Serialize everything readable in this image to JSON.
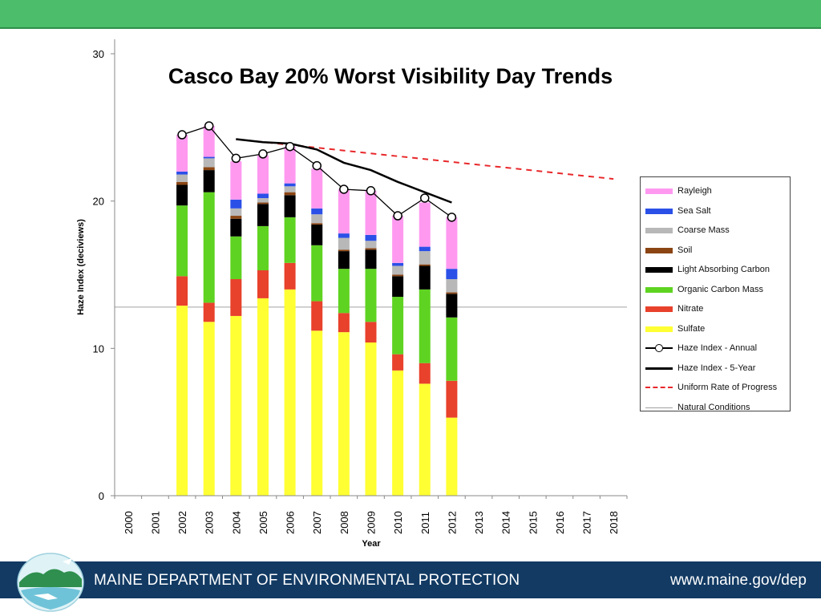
{
  "chart_data": {
    "type": "bar",
    "title": "Casco Bay 20% Worst Visibility Day Trends",
    "xlabel": "Year",
    "ylabel": "Haze Index (deciviews)",
    "ylim": [
      0,
      30
    ],
    "yticks": [
      0,
      10,
      20,
      30
    ],
    "grid": false,
    "legend_position": "right",
    "x": [
      "2000",
      "2001",
      "2002",
      "2003",
      "2004",
      "2005",
      "2006",
      "2007",
      "2008",
      "2009",
      "2010",
      "2011",
      "2012",
      "2013",
      "2014",
      "2015",
      "2016",
      "2017",
      "2018"
    ],
    "stack_order": [
      "Sulfate",
      "Nitrate",
      "Organic Carbon Mass",
      "Light Absorbing Carbon",
      "Soil",
      "Coarse Mass",
      "Sea Salt",
      "Rayleigh"
    ],
    "series": [
      {
        "name": "Sulfate",
        "color": "#ffff33",
        "values": [
          null,
          null,
          12.9,
          11.8,
          12.2,
          13.4,
          14.0,
          11.2,
          11.1,
          10.4,
          8.5,
          7.6,
          5.3,
          null,
          null,
          null,
          null,
          null,
          null
        ]
      },
      {
        "name": "Nitrate",
        "color": "#e8412c",
        "values": [
          null,
          null,
          2.0,
          1.3,
          2.5,
          1.9,
          1.8,
          2.0,
          1.3,
          1.4,
          1.1,
          1.4,
          2.5,
          null,
          null,
          null,
          null,
          null,
          null
        ]
      },
      {
        "name": "Organic Carbon Mass",
        "color": "#5fd321",
        "values": [
          null,
          null,
          4.8,
          7.5,
          2.9,
          3.0,
          3.1,
          3.8,
          3.0,
          3.6,
          3.9,
          5.0,
          4.3,
          null,
          null,
          null,
          null,
          null,
          null
        ]
      },
      {
        "name": "Light Absorbing Carbon",
        "color": "#000000",
        "values": [
          null,
          null,
          1.4,
          1.5,
          1.2,
          1.5,
          1.5,
          1.4,
          1.2,
          1.3,
          1.4,
          1.6,
          1.6,
          null,
          null,
          null,
          null,
          null,
          null
        ]
      },
      {
        "name": "Soil",
        "color": "#8b4513",
        "values": [
          null,
          null,
          0.2,
          0.2,
          0.2,
          0.1,
          0.2,
          0.1,
          0.1,
          0.1,
          0.1,
          0.1,
          0.1,
          null,
          null,
          null,
          null,
          null,
          null
        ]
      },
      {
        "name": "Coarse Mass",
        "color": "#b8b8b8",
        "values": [
          null,
          null,
          0.5,
          0.6,
          0.5,
          0.3,
          0.4,
          0.6,
          0.8,
          0.5,
          0.6,
          0.9,
          0.9,
          null,
          null,
          null,
          null,
          null,
          null
        ]
      },
      {
        "name": "Sea Salt",
        "color": "#2b50e8",
        "values": [
          null,
          null,
          0.2,
          0.1,
          0.6,
          0.3,
          0.2,
          0.4,
          0.3,
          0.4,
          0.2,
          0.3,
          0.7,
          null,
          null,
          null,
          null,
          null,
          null
        ]
      },
      {
        "name": "Rayleigh",
        "color": "#ff99f0",
        "values": [
          null,
          null,
          2.5,
          2.1,
          2.6,
          2.6,
          2.5,
          2.7,
          3.0,
          3.0,
          3.2,
          3.0,
          3.5,
          null,
          null,
          null,
          null,
          null,
          null
        ]
      }
    ],
    "lines": [
      {
        "name": "Haze Index - Annual",
        "style": "line-marker",
        "color": "#000000",
        "values": [
          null,
          null,
          24.5,
          25.1,
          22.9,
          23.2,
          23.7,
          22.4,
          20.8,
          20.7,
          19.0,
          20.2,
          18.9,
          null,
          null,
          null,
          null,
          null,
          null
        ]
      },
      {
        "name": "Haze Index - 5-Year",
        "style": "line",
        "color": "#000000",
        "values": [
          null,
          null,
          null,
          null,
          24.2,
          24.0,
          23.9,
          23.5,
          22.6,
          22.1,
          21.3,
          20.6,
          19.9,
          null,
          null,
          null,
          null,
          null,
          null
        ]
      },
      {
        "name": "Uniform Rate of Progress",
        "style": "dashed",
        "color": "#e8282b",
        "x_range": [
          "2004",
          "2018"
        ],
        "y_range": [
          24.2,
          21.5
        ]
      },
      {
        "name": "Natural Conditions",
        "style": "thin",
        "color": "#a0a0a0",
        "y": 12.8
      }
    ]
  },
  "legend": {
    "items": [
      {
        "label": "Rayleigh",
        "kind": "box",
        "color": "#ff99f0"
      },
      {
        "label": "Sea Salt",
        "kind": "box",
        "color": "#2b50e8"
      },
      {
        "label": "Coarse Mass",
        "kind": "box",
        "color": "#b8b8b8"
      },
      {
        "label": "Soil",
        "kind": "box",
        "color": "#8b4513"
      },
      {
        "label": "Light Absorbing Carbon",
        "kind": "box",
        "color": "#000000"
      },
      {
        "label": "Organic Carbon Mass",
        "kind": "box",
        "color": "#5fd321"
      },
      {
        "label": "Nitrate",
        "kind": "box",
        "color": "#e8412c"
      },
      {
        "label": "Sulfate",
        "kind": "box",
        "color": "#ffff33"
      },
      {
        "label": "Haze Index - Annual",
        "kind": "marker",
        "color": "#000000"
      },
      {
        "label": "Haze Index - 5-Year",
        "kind": "line",
        "color": "#000000"
      },
      {
        "label": "Uniform Rate of Progress",
        "kind": "dash",
        "color": "#e8282b"
      },
      {
        "label": "Natural Conditions",
        "kind": "thin",
        "color": "#a0a0a0"
      }
    ]
  },
  "footer": {
    "agency": "MAINE DEPARTMENT OF ENVIRONMENTAL PROTECTION",
    "url": "www.maine.gov/dep",
    "accent": "#4cbd6a",
    "bar_color": "#123a63"
  }
}
